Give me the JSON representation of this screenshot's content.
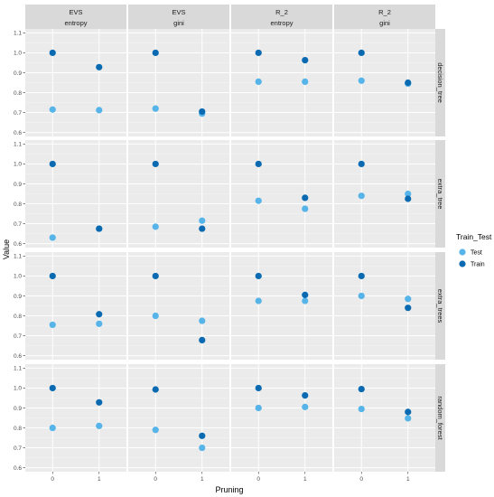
{
  "chart_data": {
    "type": "scatter",
    "facet_cols": [
      {
        "top": "EVS",
        "sub": "entropy"
      },
      {
        "top": "EVS",
        "sub": "gini"
      },
      {
        "top": "R_2",
        "sub": "entropy"
      },
      {
        "top": "R_2",
        "sub": "gini"
      }
    ],
    "facet_rows": [
      "decision_tree",
      "extra_tree",
      "extra_trees",
      "random_forest"
    ],
    "x_categories": [
      "0",
      "1"
    ],
    "xlabel": "Pruning",
    "ylabel": "Value",
    "ylim": [
      0.58,
      1.12
    ],
    "yticks": [
      0.6,
      0.7,
      0.8,
      0.9,
      1.0,
      1.1
    ],
    "ytick_labels": [
      "0.6",
      "0.7",
      "0.8",
      "0.9",
      "1.0",
      "1.1"
    ],
    "grid": true,
    "legend": {
      "title": "Train_Test",
      "position": "right",
      "entries": [
        {
          "label": "Test",
          "color": "#56b4e9"
        },
        {
          "label": "Train",
          "color": "#0a6ab1"
        }
      ]
    },
    "series": [
      {
        "name": "Test",
        "color": "#56b4e9",
        "values": [
          [
            [
              0.715,
              0.712
            ],
            [
              0.72,
              0.695
            ],
            [
              0.855,
              0.855
            ],
            [
              0.86,
              0.845
            ]
          ],
          [
            [
              0.63,
              0.675
            ],
            [
              0.685,
              0.715
            ],
            [
              0.815,
              0.775
            ],
            [
              0.84,
              0.85
            ]
          ],
          [
            [
              0.755,
              0.76
            ],
            [
              0.8,
              0.775
            ],
            [
              0.875,
              0.875
            ],
            [
              0.9,
              0.885
            ]
          ],
          [
            [
              0.8,
              0.81
            ],
            [
              0.79,
              0.7
            ],
            [
              0.9,
              0.905
            ],
            [
              0.895,
              0.848
            ]
          ]
        ]
      },
      {
        "name": "Train",
        "color": "#0a6ab1",
        "values": [
          [
            [
              1.0,
              0.928
            ],
            [
              1.0,
              0.705
            ],
            [
              1.0,
              0.963
            ],
            [
              1.0,
              0.85
            ]
          ],
          [
            [
              1.0,
              0.675
            ],
            [
              1.0,
              0.675
            ],
            [
              1.0,
              0.83
            ],
            [
              1.0,
              0.825
            ]
          ],
          [
            [
              1.0,
              0.808
            ],
            [
              1.0,
              0.678
            ],
            [
              1.0,
              0.905
            ],
            [
              1.0,
              0.84
            ]
          ],
          [
            [
              1.0,
              0.928
            ],
            [
              0.993,
              0.76
            ],
            [
              1.0,
              0.963
            ],
            [
              0.995,
              0.88
            ]
          ]
        ]
      }
    ]
  }
}
